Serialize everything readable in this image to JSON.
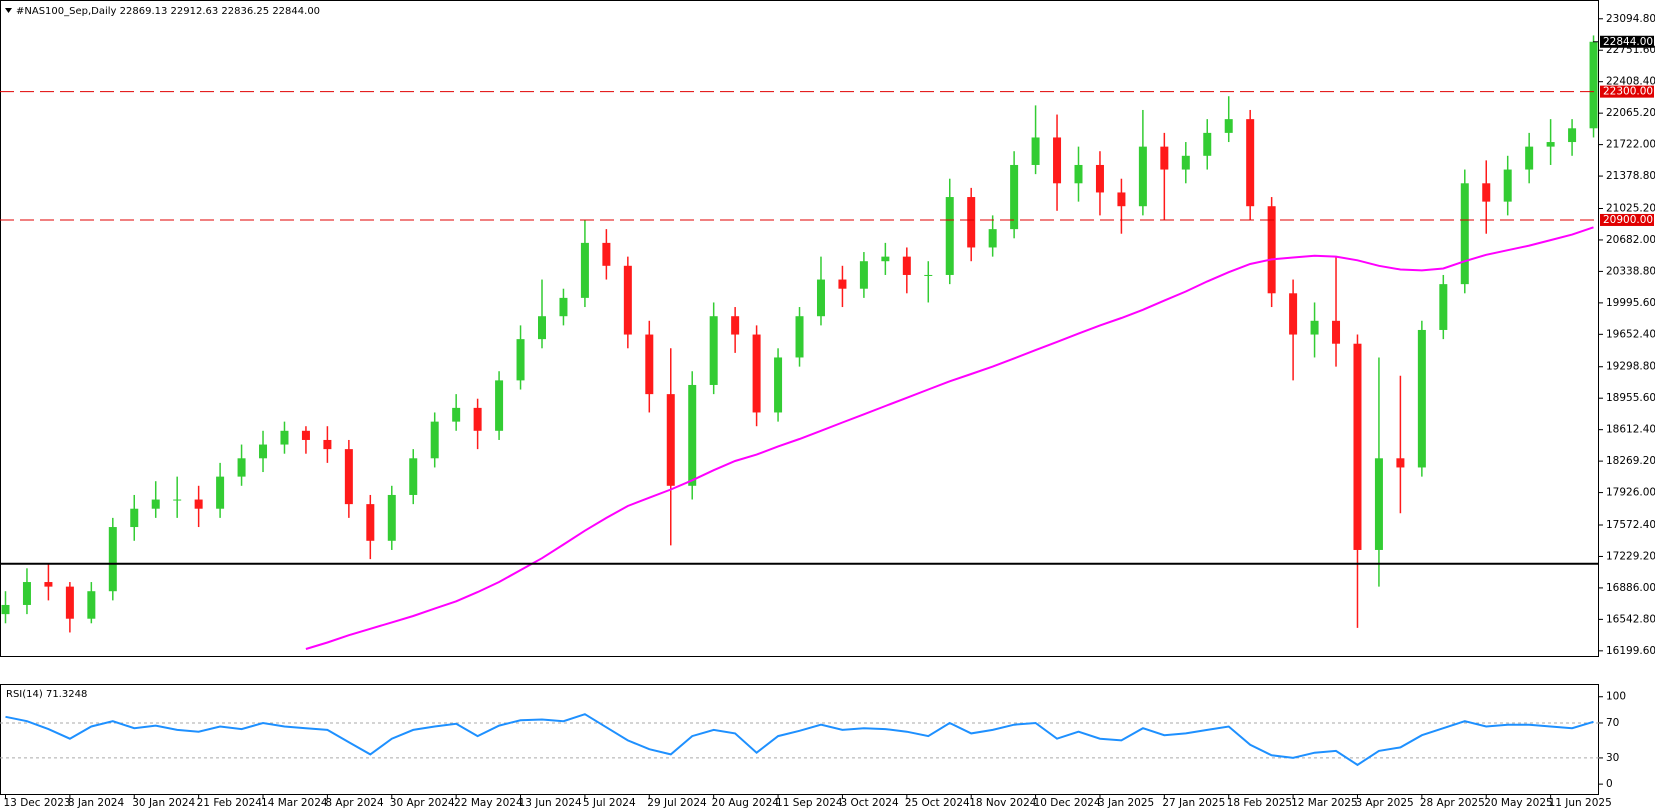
{
  "chart_data": [
    {
      "type": "candlestick",
      "title": "#NAS100_Sep,Daily  22869.13 22912.63 22836.25 22844.00",
      "categories": [
        "13 Dec 2023",
        null,
        null,
        "8 Jan 2024",
        null,
        null,
        "30 Jan 2024",
        null,
        null,
        "21 Feb 2024",
        null,
        null,
        "14 Mar 2024",
        null,
        null,
        "8 Apr 2024",
        null,
        null,
        "30 Apr 2024",
        null,
        null,
        "22 May 2024",
        null,
        null,
        "13 Jun 2024",
        null,
        null,
        "5 Jul 2024",
        null,
        null,
        "29 Jul 2024",
        null,
        null,
        "20 Aug 2024",
        null,
        null,
        "11 Sep 2024",
        null,
        null,
        "3 Oct 2024",
        null,
        null,
        "25 Oct 2024",
        null,
        null,
        "18 Nov 2024",
        null,
        null,
        "10 Dec 2024",
        null,
        null,
        "3 Jan 2025",
        null,
        null,
        "27 Jan 2025",
        null,
        null,
        "18 Feb 2025",
        null,
        null,
        "12 Mar 2025",
        null,
        null,
        "3 Apr 2025",
        null,
        null,
        "28 Apr 2025",
        null,
        null,
        "20 May 2025",
        null,
        null,
        "11 Jun 2025",
        null,
        null
      ],
      "open": [
        16600,
        16700,
        16950,
        16900,
        16550,
        16850,
        17550,
        17750,
        17850,
        17850,
        17750,
        18100,
        18300,
        18450,
        18600,
        18500,
        18400,
        17800,
        17400,
        17900,
        18300,
        18700,
        18850,
        18600,
        19150,
        19600,
        19850,
        20050,
        20650,
        20400,
        19650,
        19000,
        18000,
        19100,
        19850,
        19650,
        18800,
        19400,
        19850,
        20250,
        20150,
        20450,
        20500,
        20300,
        20300,
        21150,
        20600,
        20800,
        21500,
        21800,
        21300,
        21500,
        21200,
        21050,
        21700,
        21450,
        21600,
        21850,
        22000,
        21050,
        20100,
        19650,
        19800,
        19550,
        17300,
        18300,
        18200,
        19700,
        20200,
        21300,
        21100,
        21450,
        21700,
        21750,
        21900
      ],
      "high": [
        16850,
        17100,
        17150,
        16950,
        16950,
        17650,
        17900,
        18050,
        18100,
        18000,
        18250,
        18450,
        18600,
        18700,
        18650,
        18650,
        18500,
        17900,
        18000,
        18400,
        18800,
        19000,
        18950,
        19250,
        19750,
        20250,
        20150,
        20900,
        20800,
        20500,
        19800,
        19500,
        19250,
        20000,
        19950,
        19750,
        19500,
        19950,
        20500,
        20400,
        20550,
        20650,
        20600,
        20450,
        21350,
        21250,
        20950,
        21650,
        22150,
        22050,
        21700,
        21650,
        21350,
        22100,
        21850,
        21750,
        22000,
        22250,
        22100,
        21150,
        20250,
        20000,
        20500,
        19650,
        19400,
        19200,
        19800,
        20300,
        21450,
        21550,
        21600,
        21850,
        22000,
        22000,
        22913
      ],
      "low": [
        16500,
        16600,
        16750,
        16400,
        16500,
        16750,
        17400,
        17650,
        17650,
        17550,
        17650,
        18000,
        18150,
        18350,
        18350,
        18250,
        17650,
        17200,
        17300,
        17800,
        18200,
        18600,
        18400,
        18500,
        19050,
        19500,
        19750,
        19950,
        20250,
        19500,
        18800,
        17350,
        17850,
        19000,
        19450,
        18650,
        18700,
        19300,
        19750,
        19950,
        20050,
        20300,
        20100,
        20000,
        20200,
        20450,
        20500,
        20700,
        21400,
        21000,
        21100,
        20950,
        20750,
        20950,
        20900,
        21300,
        21450,
        21750,
        20900,
        19950,
        19150,
        19400,
        19300,
        16450,
        16900,
        17700,
        18100,
        19600,
        20100,
        20750,
        20950,
        21300,
        21500,
        21600,
        21800
      ],
      "close": [
        16700,
        16950,
        16900,
        16550,
        16850,
        17550,
        17750,
        17850,
        17850,
        17750,
        18100,
        18300,
        18450,
        18600,
        18500,
        18400,
        17800,
        17400,
        17900,
        18300,
        18700,
        18850,
        18600,
        19150,
        19600,
        19850,
        20050,
        20650,
        20400,
        19650,
        19000,
        18000,
        19100,
        19850,
        19650,
        18800,
        19400,
        19850,
        20250,
        20150,
        20450,
        20500,
        20300,
        20300,
        21150,
        20600,
        20800,
        21500,
        21800,
        21300,
        21500,
        21200,
        21050,
        21700,
        21450,
        21600,
        21850,
        22000,
        21050,
        20100,
        19650,
        19800,
        19550,
        17300,
        18300,
        18200,
        19700,
        20200,
        21300,
        21100,
        21450,
        21700,
        21750,
        21900,
        22844
      ],
      "up_color": "#33cc33",
      "down_color": "#ff1a1a",
      "overlays": [
        {
          "type": "line",
          "color": "#ff00ff",
          "values": [
            null,
            null,
            null,
            null,
            null,
            null,
            null,
            null,
            null,
            null,
            null,
            null,
            null,
            null,
            16220,
            16290,
            16370,
            16440,
            16510,
            16580,
            16660,
            16740,
            16840,
            16950,
            17080,
            17210,
            17360,
            17510,
            17650,
            17780,
            17870,
            17960,
            18060,
            18170,
            18270,
            18340,
            18430,
            18510,
            18600,
            18690,
            18780,
            18870,
            18960,
            19050,
            19140,
            19220,
            19300,
            19390,
            19480,
            19570,
            19660,
            19750,
            19830,
            19920,
            20020,
            20120,
            20230,
            20330,
            20420,
            20470,
            20490,
            20510,
            20500,
            20460,
            20400,
            20360,
            20350,
            20370,
            20450,
            20520,
            20570,
            20620,
            20680,
            20740,
            20820
          ]
        }
      ],
      "hlines": [
        {
          "value": 22300,
          "label": "22300.00",
          "color": "#e00000",
          "style": "dashed"
        },
        {
          "value": 20900,
          "label": "20900.00",
          "color": "#e00000",
          "style": "dashed"
        },
        {
          "value": 17150,
          "color": "#000000",
          "style": "solid"
        }
      ],
      "last_price": {
        "value": 22844,
        "label": "22844.00"
      },
      "ylim": [
        16165,
        23256
      ],
      "yticks": [
        {
          "value": 23094.8,
          "label": "23094.80"
        },
        {
          "value": 22751.6,
          "label": "22751.60"
        },
        {
          "value": 22408.4,
          "label": "22408.40"
        },
        {
          "value": 22065.2,
          "label": "22065.20"
        },
        {
          "value": 21722,
          "label": "21722.00"
        },
        {
          "value": 21378.8,
          "label": "21378.80"
        },
        {
          "value": 21025.2,
          "label": "21025.20"
        },
        {
          "value": 20682,
          "label": "20682.00"
        },
        {
          "value": 20338.8,
          "label": "20338.80"
        },
        {
          "value": 19995.6,
          "label": "19995.60"
        },
        {
          "value": 19652.4,
          "label": "19652.40"
        },
        {
          "value": 19298.8,
          "label": "19298.80"
        },
        {
          "value": 18955.6,
          "label": "18955.60"
        },
        {
          "value": 18612.4,
          "label": "18612.40"
        },
        {
          "value": 18269.2,
          "label": "18269.20"
        },
        {
          "value": 17926,
          "label": "17926.00"
        },
        {
          "value": 17572.4,
          "label": "17572.40"
        },
        {
          "value": 17229.2,
          "label": "17229.20"
        },
        {
          "value": 16886,
          "label": "16886.00"
        },
        {
          "value": 16542.8,
          "label": "16542.80"
        },
        {
          "value": 16199.6,
          "label": "16199.60"
        }
      ],
      "grid": false
    },
    {
      "type": "line",
      "title": "RSI(14) 71.3248",
      "values": [
        77,
        72,
        63,
        52,
        66,
        72,
        64,
        67,
        62,
        60,
        66,
        63,
        70,
        66,
        64,
        62,
        48,
        34,
        52,
        62,
        66,
        69,
        55,
        67,
        73,
        74,
        72,
        80,
        65,
        50,
        40,
        34,
        55,
        62,
        58,
        36,
        55,
        61,
        68,
        62,
        64,
        63,
        60,
        55,
        70,
        58,
        62,
        68,
        70,
        52,
        60,
        52,
        50,
        64,
        56,
        58,
        62,
        66,
        45,
        33,
        30,
        36,
        38,
        22,
        38,
        42,
        56,
        64,
        72,
        66,
        68,
        68,
        66,
        64,
        71.3248
      ],
      "color": "#1e90ff",
      "levels": [
        70,
        30
      ],
      "ylim": [
        -9,
        110
      ],
      "yticks": [
        100,
        70,
        30,
        0
      ],
      "grid": false
    }
  ]
}
